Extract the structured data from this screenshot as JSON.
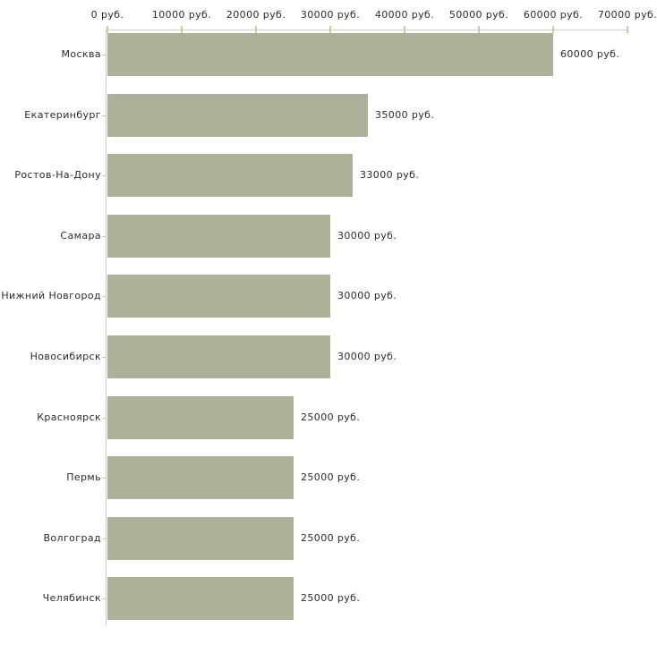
{
  "chart_data": {
    "type": "bar",
    "orientation": "horizontal",
    "title": "",
    "xlabel": "",
    "ylabel": "",
    "unit": "руб.",
    "xlim": [
      0,
      70000
    ],
    "x_tick_values": [
      0,
      10000,
      20000,
      30000,
      40000,
      50000,
      60000,
      70000
    ],
    "x_tick_labels": [
      "0 руб.",
      "10000 руб.",
      "20000 руб.",
      "30000 руб.",
      "40000 руб.",
      "50000 руб.",
      "60000 руб.",
      "70000 руб."
    ],
    "categories": [
      "Москва",
      "Екатеринбург",
      "Ростов-На-Дону",
      "Самара",
      "Нижний Новгород",
      "Новосибирск",
      "Красноярск",
      "Пермь",
      "Волгоград",
      "Челябинск"
    ],
    "values": [
      60000,
      35000,
      33000,
      30000,
      30000,
      30000,
      25000,
      25000,
      25000,
      25000
    ],
    "value_labels": [
      "60000 руб.",
      "35000 руб.",
      "33000 руб.",
      "30000 руб.",
      "30000 руб.",
      "30000 руб.",
      "25000 руб.",
      "25000 руб.",
      "25000 руб.",
      "25000 руб."
    ],
    "legend": "none",
    "grid": "off",
    "colors": {
      "bar": "#acb299",
      "axis_line": "#cccccc",
      "tick_mark": "#cccc99",
      "text": "#2b2b2b",
      "background": "#ffffff"
    }
  }
}
